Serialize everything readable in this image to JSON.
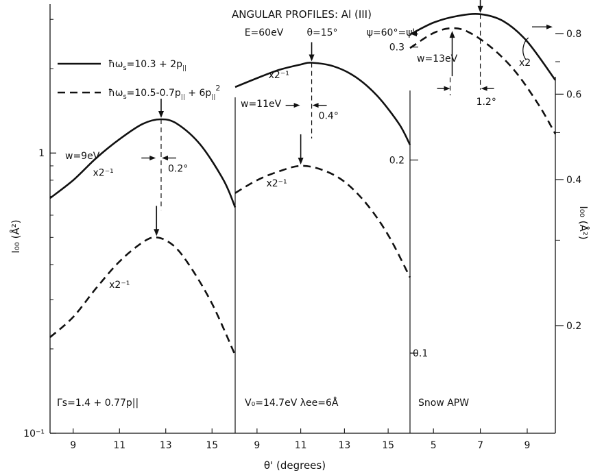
{
  "chart_data": {
    "type": "line",
    "title": "ANGULAR PROFILES: Al (III)",
    "subtitle": [
      "E=60eV",
      "θ=15°",
      "ψ=60°=ψ'"
    ],
    "xlabel": "θ' (degrees)",
    "ylabel_left": "I₀₀ (Å²)",
    "ylabel_right": "I₀₀ (Å²)",
    "yscale": "log",
    "legend": {
      "placement": "top-left",
      "entries": [
        {
          "style": "solid",
          "label_parts": [
            "ħω",
            "s",
            "=10.3 + 2p",
            "||"
          ]
        },
        {
          "style": "dashed",
          "label_parts": [
            "ħω",
            "s",
            "=10.5-0.7p",
            "||",
            " + 6p",
            "||",
            "2"
          ]
        }
      ]
    },
    "left_axis": {
      "range": [
        0.1,
        3.4
      ],
      "ticks": [
        {
          "v": 1,
          "label": "1"
        },
        {
          "v": 0.1,
          "label": "10⁻¹"
        }
      ]
    },
    "right_axis": {
      "range": [
        0.12,
        0.92
      ],
      "ticks": [
        {
          "v": 0.8,
          "label": "0.8"
        },
        {
          "v": 0.6,
          "label": "0.6"
        },
        {
          "v": 0.4,
          "label": "0.4"
        },
        {
          "v": 0.2,
          "label": "0.2"
        }
      ]
    },
    "panels": [
      {
        "id": "p1",
        "w_label": "w=9eV",
        "xlim": [
          8,
          16
        ],
        "xticks": [
          9,
          11,
          13,
          15
        ],
        "bottom_label": "Γs=1.4 + 0.77p||",
        "series": [
          {
            "style": "solid",
            "x": [
              8,
              9,
              10,
              11,
              12,
              12.8,
              13.5,
              14.5,
              15.5,
              16
            ],
            "y": [
              0.69,
              0.8,
              0.96,
              1.12,
              1.27,
              1.32,
              1.27,
              1.07,
              0.8,
              0.64
            ]
          },
          {
            "style": "dashed",
            "x": [
              8,
              9,
              10,
              11,
              12,
              12.6,
              13.3,
              14,
              15,
              16
            ],
            "y": [
              0.22,
              0.26,
              0.33,
              0.41,
              0.48,
              0.5,
              0.47,
              0.4,
              0.29,
              0.19
            ]
          }
        ],
        "scale_labels": [
          {
            "text": "x2⁻¹",
            "x": 10.3,
            "y": 0.83
          },
          {
            "text": "x2⁻¹",
            "x": 11.0,
            "y": 0.33
          }
        ],
        "shift_label": "0.2°"
      },
      {
        "id": "p2",
        "w_label": "w=11eV",
        "xlim": [
          8,
          16
        ],
        "xticks": [
          9,
          11,
          13,
          15
        ],
        "bottom_label": "V₀=14.7eV  λee=6Å",
        "series": [
          {
            "style": "solid",
            "x": [
              8,
              9,
              10,
              11,
              11.5,
              12.5,
              13.5,
              14.5,
              15.5,
              16
            ],
            "y": [
              1.72,
              1.85,
              1.98,
              2.07,
              2.1,
              2.04,
              1.87,
              1.6,
              1.27,
              1.07
            ]
          },
          {
            "style": "dashed",
            "x": [
              8,
              9,
              10,
              11,
              12,
              13,
              14,
              15,
              16
            ],
            "y": [
              0.72,
              0.8,
              0.86,
              0.9,
              0.87,
              0.79,
              0.66,
              0.51,
              0.36
            ]
          }
        ],
        "scale_labels": [
          {
            "text": "x2⁻¹",
            "x": 10.0,
            "y": 1.85
          },
          {
            "text": "x2⁻¹",
            "x": 9.9,
            "y": 0.76
          }
        ],
        "shift_label": "0.4°"
      },
      {
        "id": "p3",
        "w_label": "w=13eV",
        "xlim": [
          4,
          10.2
        ],
        "xticks": [
          5,
          7,
          9
        ],
        "bottom_label": "Snow APW",
        "series": [
          {
            "style": "solid",
            "x": [
              4,
              5,
              6,
              7,
              8,
              9,
              10.2
            ],
            "y": [
              2.65,
              2.92,
              3.08,
              3.13,
              2.95,
              2.5,
              1.82
            ]
          },
          {
            "style": "dashed",
            "x": [
              4,
              5,
              5.8,
              6.5,
              7.5,
              8.5,
              9.5,
              10.2
            ],
            "y": [
              2.37,
              2.68,
              2.79,
              2.7,
              2.37,
              1.95,
              1.48,
              1.17
            ]
          }
        ],
        "scale_labels": [
          {
            "text": "x2",
            "x": 8.9,
            "y": 2.05
          }
        ],
        "inner_axis": {
          "ticks": [
            {
              "v": 0.3,
              "label": "0.3"
            },
            {
              "v": 0.2,
              "label": "0.2"
            },
            {
              "v": 0.1,
              "label": "0.1"
            }
          ]
        },
        "shift_label": "1.2°"
      }
    ]
  }
}
